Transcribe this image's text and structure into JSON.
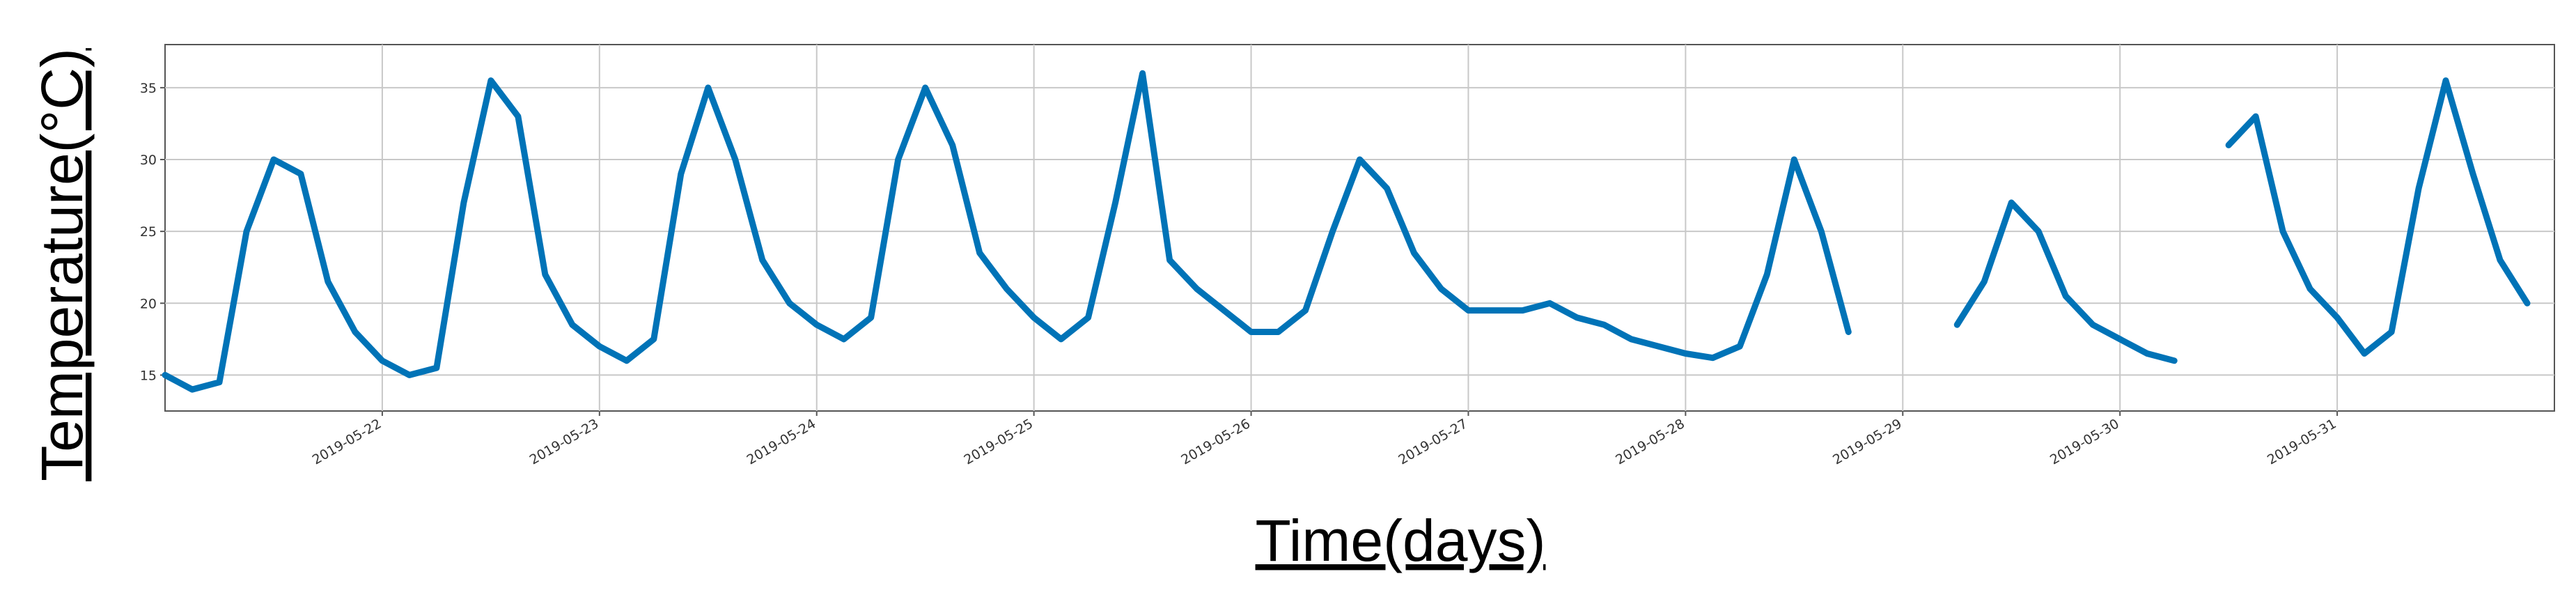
{
  "chart_data": {
    "type": "line",
    "x_label": "Time(days)",
    "y_label": "Temperature(°C)",
    "x": [
      "2019-05-21 00:00",
      "2019-05-21 03:00",
      "2019-05-21 06:00",
      "2019-05-21 09:00",
      "2019-05-21 12:00",
      "2019-05-21 15:00",
      "2019-05-21 18:00",
      "2019-05-21 21:00",
      "2019-05-22 00:00",
      "2019-05-22 03:00",
      "2019-05-22 06:00",
      "2019-05-22 09:00",
      "2019-05-22 12:00",
      "2019-05-22 15:00",
      "2019-05-22 18:00",
      "2019-05-22 21:00",
      "2019-05-23 00:00",
      "2019-05-23 03:00",
      "2019-05-23 06:00",
      "2019-05-23 09:00",
      "2019-05-23 12:00",
      "2019-05-23 15:00",
      "2019-05-23 18:00",
      "2019-05-23 21:00",
      "2019-05-24 00:00",
      "2019-05-24 03:00",
      "2019-05-24 06:00",
      "2019-05-24 09:00",
      "2019-05-24 12:00",
      "2019-05-24 15:00",
      "2019-05-24 18:00",
      "2019-05-24 21:00",
      "2019-05-25 00:00",
      "2019-05-25 03:00",
      "2019-05-25 06:00",
      "2019-05-25 09:00",
      "2019-05-25 12:00",
      "2019-05-25 15:00",
      "2019-05-25 18:00",
      "2019-05-25 21:00",
      "2019-05-26 00:00",
      "2019-05-26 03:00",
      "2019-05-26 06:00",
      "2019-05-26 09:00",
      "2019-05-26 12:00",
      "2019-05-26 15:00",
      "2019-05-26 18:00",
      "2019-05-26 21:00",
      "2019-05-27 00:00",
      "2019-05-27 03:00",
      "2019-05-27 06:00",
      "2019-05-27 09:00",
      "2019-05-27 12:00",
      "2019-05-27 15:00",
      "2019-05-27 18:00",
      "2019-05-27 21:00",
      "2019-05-28 00:00",
      "2019-05-28 03:00",
      "2019-05-28 06:00",
      "2019-05-28 09:00",
      "2019-05-28 12:00",
      "2019-05-28 15:00",
      "2019-05-28 18:00",
      "2019-05-28 21:00",
      "2019-05-29 00:00",
      "2019-05-29 03:00",
      "2019-05-29 06:00",
      "2019-05-29 09:00",
      "2019-05-29 12:00",
      "2019-05-29 15:00",
      "2019-05-29 18:00",
      "2019-05-29 21:00",
      "2019-05-30 00:00",
      "2019-05-30 03:00",
      "2019-05-30 06:00",
      "2019-05-30 09:00",
      "2019-05-30 12:00",
      "2019-05-30 15:00",
      "2019-05-30 18:00",
      "2019-05-30 21:00",
      "2019-05-31 00:00",
      "2019-05-31 03:00",
      "2019-05-31 06:00",
      "2019-05-31 09:00",
      "2019-05-31 12:00",
      "2019-05-31 15:00",
      "2019-05-31 18:00",
      "2019-05-31 21:00"
    ],
    "series": [
      {
        "color": "#0073b7",
        "values": [
          15,
          14,
          14.5,
          25,
          30,
          29,
          21.5,
          18,
          16,
          15,
          15.5,
          27,
          35.5,
          33,
          22,
          18.5,
          17,
          16,
          17.5,
          29,
          35,
          30,
          23,
          20,
          18.5,
          17.5,
          19,
          30,
          35,
          31,
          23.5,
          21,
          19,
          17.5,
          19,
          27,
          36,
          23,
          21,
          19.5,
          18,
          18,
          19.5,
          25,
          30,
          28,
          23.5,
          21,
          19.5,
          19.5,
          19.5,
          20,
          19,
          18.5,
          17.5,
          17,
          16.5,
          16.2,
          17,
          22,
          30,
          25,
          18,
          null,
          null,
          null,
          18.5,
          21.5,
          27,
          25,
          20.5,
          18.5,
          17.5,
          16.5,
          16,
          null,
          31,
          33,
          25,
          21,
          19,
          16.5,
          18,
          28,
          35.5,
          29,
          23,
          20
        ]
      }
    ],
    "xlim": [
      "2019-05-21",
      "2019-06-01"
    ],
    "xticks": [
      "2019-05-22",
      "2019-05-23",
      "2019-05-24",
      "2019-05-25",
      "2019-05-26",
      "2019-05-27",
      "2019-05-28",
      "2019-05-29",
      "2019-05-30",
      "2019-05-31"
    ],
    "ylim": [
      12.5,
      38
    ],
    "yticks": [
      15,
      20,
      25,
      30,
      35
    ],
    "grid": true
  }
}
